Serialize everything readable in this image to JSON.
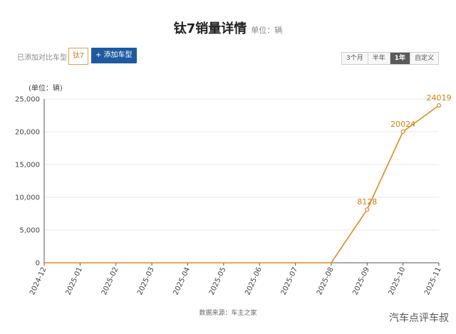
{
  "header": {
    "title": "钛7销量详情",
    "unit": "单位：辆"
  },
  "compare": {
    "label": "已添加对比车型：",
    "model_tag": "钛7",
    "add_button": "+ 添加车型"
  },
  "range": {
    "options": [
      "3个月",
      "半年",
      "1年",
      "自定义"
    ],
    "active": "1年"
  },
  "footer": {
    "source": "数据来源：车主之家",
    "watermark": "汽车点评车叔"
  },
  "colors": {
    "line": "#e08a1e",
    "label": "#d27d12",
    "grid": "#e8e8e8"
  },
  "chart_data": {
    "type": "line",
    "ylabel": "(单位：辆)",
    "ylim": [
      0,
      25000
    ],
    "yticks": [
      "0",
      "5,000",
      "10,000",
      "15,000",
      "20,000",
      "25,000"
    ],
    "ytick_values": [
      0,
      5000,
      10000,
      15000,
      20000,
      25000
    ],
    "categories": [
      "2024-12",
      "2025-01",
      "2025-02",
      "2025-03",
      "2025-04",
      "2025-05",
      "2025-06",
      "2025-07",
      "2025-08",
      "2025-09",
      "2025-10",
      "2025-11"
    ],
    "values": [
      0,
      0,
      0,
      0,
      0,
      0,
      0,
      0,
      0,
      8128,
      20024,
      24019
    ],
    "data_labels": [
      "",
      "",
      "",
      "",
      "",
      "",
      "",
      "",
      "",
      "8128",
      "20024",
      "24019"
    ],
    "grid": true
  }
}
